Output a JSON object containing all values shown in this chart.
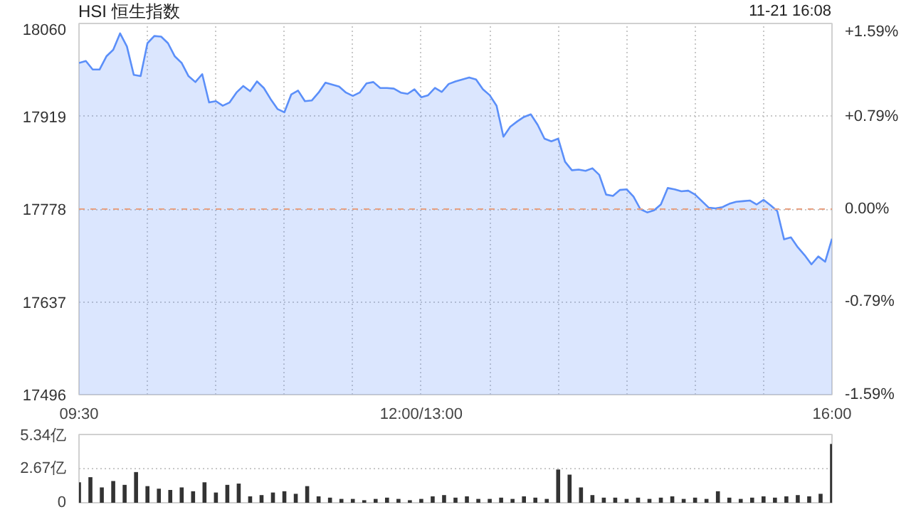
{
  "chart_data": [
    {
      "type": "area",
      "title": "HSI 恒生指数",
      "annotations": [
        "11-21 16:08"
      ],
      "categories": [
        "09:30",
        null,
        null,
        null,
        null,
        null,
        null,
        null,
        null,
        null,
        null,
        null,
        null,
        null,
        null,
        null,
        null,
        null,
        null,
        null,
        null,
        null,
        null,
        null,
        null,
        null,
        null,
        null,
        null,
        null,
        null,
        null,
        null,
        null,
        null,
        null,
        null,
        null,
        null,
        null,
        null,
        null,
        null,
        null,
        null,
        null,
        null,
        null,
        null,
        null,
        "12:00/13:00",
        null,
        null,
        null,
        null,
        null,
        null,
        null,
        null,
        null,
        null,
        null,
        null,
        null,
        null,
        null,
        null,
        null,
        null,
        null,
        null,
        null,
        null,
        null,
        null,
        null,
        null,
        null,
        null,
        null,
        null,
        null,
        null,
        null,
        null,
        null,
        null,
        null,
        null,
        null,
        null,
        null,
        null,
        null,
        null,
        null,
        null,
        null,
        null,
        null,
        null,
        null,
        null,
        null,
        null,
        null,
        null,
        null,
        null,
        null,
        "16:00"
      ],
      "series": [
        {
          "color": "#5b8ff9",
          "values": [
            18000,
            18003,
            17990,
            17990,
            18010,
            18020,
            18045,
            18025,
            17982,
            17980,
            18030,
            18041,
            18040,
            18030,
            18010,
            18000,
            17980,
            17971,
            17983,
            17940,
            17942,
            17935,
            17940,
            17955,
            17965,
            17957,
            17972,
            17962,
            17945,
            17930,
            17925,
            17952,
            17958,
            17942,
            17943,
            17955,
            17970,
            17967,
            17964,
            17955,
            17950,
            17955,
            17969,
            17971,
            17962,
            17962,
            17961,
            17955,
            17953,
            17960,
            17948,
            17951,
            17962,
            17956,
            17968,
            17972,
            17975,
            17978,
            17975,
            17960,
            17951,
            17935,
            17888,
            17903,
            17911,
            17918,
            17922,
            17906,
            17885,
            17881,
            17885,
            17850,
            17837,
            17838,
            17836,
            17840,
            17830,
            17800,
            17798,
            17807,
            17808,
            17797,
            17778,
            17773,
            17776,
            17785,
            17810,
            17808,
            17805,
            17806,
            17800,
            17790,
            17780,
            17779,
            17781,
            17786,
            17789,
            17790,
            17791,
            17785,
            17792,
            17784,
            17775,
            17732,
            17735,
            17720,
            17708,
            17694,
            17706,
            17698,
            17733
          ]
        }
      ],
      "ylim": [
        17496,
        18060
      ],
      "yticks": [
        17496,
        17637,
        17778,
        17919,
        18060
      ],
      "y2lim": [
        -1.59,
        1.59
      ],
      "y2ticks": [
        {
          "value": -1.59,
          "label": "-1.59%"
        },
        {
          "value": -0.79,
          "label": "-0.79%"
        },
        {
          "value": 0,
          "label": "0.00%"
        },
        {
          "value": 0.79,
          "label": "+0.79%"
        },
        {
          "value": 1.59,
          "label": "+1.59%"
        }
      ],
      "ref_lines": [
        {
          "axis": "y",
          "value": 17778,
          "color": "#e8a080",
          "line_style": "dashed"
        }
      ],
      "grid": true,
      "marker": "none",
      "line_style": "solid"
    },
    {
      "type": "bar",
      "categories": [
        null,
        null,
        null,
        null,
        null,
        null,
        null,
        null,
        null,
        null,
        null,
        null,
        null,
        null,
        null,
        null,
        null,
        null,
        null,
        null,
        null,
        null,
        null,
        null,
        null,
        null,
        null,
        null,
        null,
        null,
        null,
        null,
        null,
        null,
        null,
        null,
        null,
        null,
        null,
        null,
        null,
        null,
        null,
        null,
        null,
        null,
        null,
        null,
        null,
        null,
        null,
        null,
        null,
        null,
        null,
        null,
        null,
        null,
        null,
        null,
        null,
        null,
        null,
        null,
        null,
        null,
        null
      ],
      "values": [
        1.6,
        2.0,
        1.2,
        1.7,
        1.4,
        2.4,
        1.3,
        1.1,
        1.0,
        1.2,
        0.9,
        1.6,
        0.8,
        1.4,
        1.5,
        0.5,
        0.6,
        0.8,
        0.9,
        0.7,
        1.3,
        0.5,
        0.4,
        0.3,
        0.3,
        0.2,
        0.3,
        0.4,
        0.3,
        0.2,
        0.3,
        0.5,
        0.6,
        0.4,
        0.5,
        0.3,
        0.3,
        0.4,
        0.3,
        0.5,
        0.4,
        0.3,
        2.6,
        2.2,
        1.2,
        0.6,
        0.4,
        0.4,
        0.3,
        0.4,
        0.3,
        0.4,
        0.5,
        0.3,
        0.4,
        0.3,
        0.9,
        0.4,
        0.3,
        0.4,
        0.5,
        0.4,
        0.5,
        0.6,
        0.5,
        0.7,
        4.6
      ],
      "color": "#333333",
      "ylim": [
        0,
        5.34
      ],
      "yticks": [
        0,
        {
          "value": 2.67,
          "label": "2.67亿"
        },
        {
          "value": 5.34,
          "label": "5.34亿"
        }
      ],
      "tick_labels": "y",
      "grid": "y"
    }
  ]
}
